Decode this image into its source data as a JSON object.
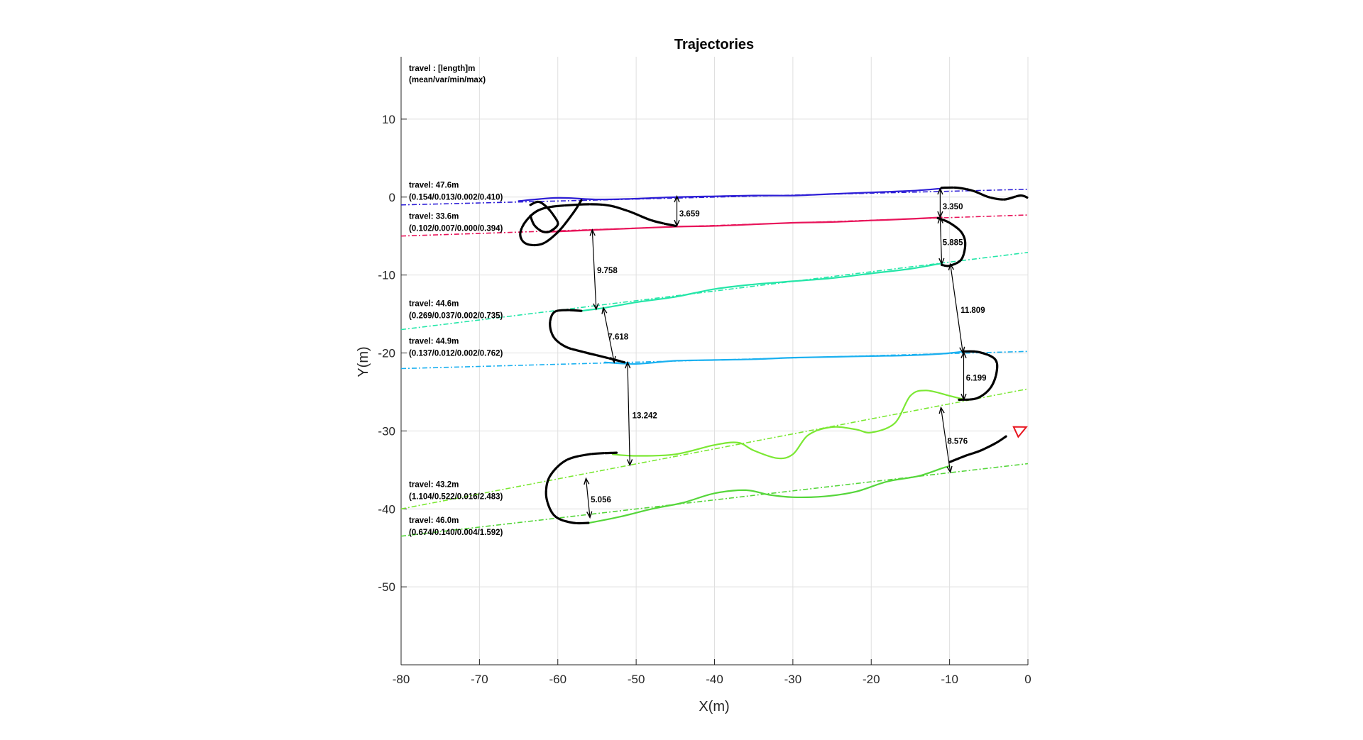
{
  "chart_data": {
    "type": "line",
    "title": "Trajectories",
    "xlabel": "X(m)",
    "ylabel": "Y(m)",
    "xlim": [
      -80,
      0
    ],
    "ylim": [
      -60,
      18
    ],
    "xticks": [
      -80,
      -70,
      -60,
      -50,
      -40,
      -30,
      -20,
      -10,
      0
    ],
    "yticks": [
      -50,
      -40,
      -30,
      -20,
      -10,
      0,
      10
    ],
    "grid": true,
    "legend_note": [
      "travel : [length]m",
      "(mean/var/min/max)"
    ],
    "series": [
      {
        "color": "#2e1fd6",
        "label_lines": [
          "travel: 47.6m",
          "(0.154/0.013/0.002/0.410)"
        ],
        "label_at": [
          -79,
          -0.8
        ],
        "reference": [
          [
            -80,
            -1.0
          ],
          [
            0,
            1.0
          ]
        ],
        "x": [
          -65,
          -60,
          -55,
          -50,
          -45,
          -40,
          -35,
          -30,
          -25,
          -20,
          -15,
          -11
        ],
        "y": [
          -0.5,
          -0.1,
          -0.3,
          -0.2,
          0.0,
          0.1,
          0.2,
          0.2,
          0.4,
          0.6,
          0.8,
          1.1
        ]
      },
      {
        "color": "#e8145a",
        "label_lines": [
          "travel: 33.6m",
          "(0.102/0.007/0.000/0.394)"
        ],
        "label_at": [
          -79,
          -4.8
        ],
        "reference": [
          [
            -80,
            -5.0
          ],
          [
            0,
            -2.3
          ]
        ],
        "x": [
          -62,
          -55,
          -50,
          -45,
          -40,
          -35,
          -30,
          -25,
          -20,
          -15,
          -11
        ],
        "y": [
          -4.5,
          -4.2,
          -4.0,
          -3.8,
          -3.7,
          -3.5,
          -3.3,
          -3.2,
          -3.0,
          -2.8,
          -2.6
        ]
      },
      {
        "color": "#24e6a8",
        "label_lines": [
          "travel: 44.6m",
          "(0.269/0.037/0.002/0.735)"
        ],
        "label_at": [
          -79,
          -16.0
        ],
        "reference": [
          [
            -80,
            -17.0
          ],
          [
            0,
            -7.1
          ]
        ],
        "x": [
          -57,
          -54,
          -50,
          -45,
          -40,
          -35,
          -30,
          -25,
          -20,
          -15,
          -11
        ],
        "y": [
          -14.6,
          -14.2,
          -13.5,
          -12.8,
          -11.8,
          -11.2,
          -10.8,
          -10.4,
          -9.8,
          -9.2,
          -8.5
        ]
      },
      {
        "color": "#1ab0f0",
        "label_lines": [
          "travel: 44.9m",
          "(0.137/0.012/0.002/0.762)"
        ],
        "label_at": [
          -79,
          -20.8
        ],
        "reference": [
          [
            -80,
            -22.0
          ],
          [
            0,
            -19.8
          ]
        ],
        "x": [
          -54,
          -50,
          -45,
          -40,
          -35,
          -30,
          -25,
          -20,
          -15,
          -11,
          -8
        ],
        "y": [
          -21.2,
          -21.4,
          -21.0,
          -20.9,
          -20.8,
          -20.6,
          -20.5,
          -20.4,
          -20.3,
          -20.1,
          -19.8
        ]
      },
      {
        "color": "#7be833",
        "label_lines": [
          "travel: 43.2m",
          "(1.104/0.522/0.016/2.483)"
        ],
        "label_at": [
          -79,
          -39.2
        ],
        "reference": [
          [
            -80,
            -40.0
          ],
          [
            0,
            -24.6
          ]
        ],
        "x": [
          -53,
          -50,
          -45,
          -40,
          -37,
          -35,
          -32,
          -30,
          -28,
          -25,
          -22,
          -20,
          -17,
          -15,
          -13,
          -10,
          -8
        ],
        "y": [
          -33.0,
          -33.2,
          -33.0,
          -31.8,
          -31.5,
          -32.5,
          -33.5,
          -33.0,
          -30.5,
          -29.5,
          -29.8,
          -30.2,
          -29.0,
          -25.5,
          -24.8,
          -25.5,
          -26.0
        ]
      },
      {
        "color": "#55d63a",
        "label_lines": [
          "travel: 46.0m",
          "(0.674/0.140/0.004/1.592)"
        ],
        "label_at": [
          -79,
          -43.8
        ],
        "reference": [
          [
            -80,
            -43.5
          ],
          [
            0,
            -34.2
          ]
        ],
        "x": [
          -56,
          -52,
          -48,
          -44,
          -40,
          -36,
          -33,
          -30,
          -26,
          -22,
          -18,
          -14,
          -11,
          -10
        ],
        "y": [
          -41.8,
          -41.0,
          -40.0,
          -39.2,
          -38.0,
          -37.6,
          -38.2,
          -38.5,
          -38.4,
          -37.8,
          -36.5,
          -35.8,
          -34.8,
          -34.5
        ]
      }
    ],
    "connections": {
      "color": "#000000",
      "segments": [
        {
          "x": [
            -63.5,
            -62.5,
            -61.5,
            -60.5,
            -60,
            -61,
            -62,
            -63,
            -63.5
          ],
          "y": [
            -1.0,
            -0.6,
            -1.2,
            -2.4,
            -3.5,
            -4.4,
            -4.4,
            -3.6,
            -2.4
          ]
        },
        {
          "x": [
            -45,
            -48,
            -51,
            -54,
            -58,
            -62,
            -64,
            -64.8,
            -64,
            -62,
            -60,
            -58,
            -57
          ],
          "y": [
            -3.7,
            -3.0,
            -1.8,
            -1.0,
            -1.0,
            -1.5,
            -3.0,
            -4.8,
            -6.0,
            -6.0,
            -4.5,
            -2.0,
            -0.4
          ]
        },
        {
          "x": [
            -11.5,
            -10,
            -8.5,
            -8,
            -8.5,
            -10,
            -11
          ],
          "y": [
            -2.7,
            -3.3,
            -4.5,
            -6.0,
            -8.0,
            -8.8,
            -8.7
          ]
        },
        {
          "x": [
            -57,
            -59,
            -60.5,
            -61,
            -60.5,
            -59,
            -57,
            -55,
            -53,
            -51.5
          ],
          "y": [
            -14.6,
            -14.5,
            -14.8,
            -16.3,
            -18.0,
            -19.2,
            -19.8,
            -20.3,
            -20.8,
            -21.2
          ]
        },
        {
          "x": [
            -8.2,
            -6.2,
            -4.2,
            -4.0,
            -4.8,
            -6.5,
            -8.8
          ],
          "y": [
            -19.8,
            -19.9,
            -20.8,
            -22.5,
            -24.5,
            -25.8,
            -26.0
          ]
        },
        {
          "x": [
            -52.5,
            -56,
            -59,
            -61,
            -61.5,
            -61,
            -60,
            -58,
            -56
          ],
          "y": [
            -32.8,
            -33.0,
            -33.8,
            -35.8,
            -38.0,
            -40.0,
            -41.2,
            -41.8,
            -41.8
          ]
        },
        {
          "x": [
            -10,
            -8,
            -6,
            -4,
            -2.8
          ],
          "y": [
            -34.0,
            -33.2,
            -32.5,
            -31.5,
            -30.7
          ]
        },
        {
          "x": [
            -11,
            -9,
            -7,
            -5,
            -3,
            -1,
            0
          ],
          "y": [
            1.2,
            1.2,
            0.8,
            0.0,
            -0.3,
            0.2,
            -0.1
          ]
        }
      ],
      "arrow_end": {
        "from": [
          -3.4,
          -31.0
        ],
        "to": [
          -0.2,
          -29.5
        ],
        "color": "#e8141e"
      }
    },
    "distances": [
      {
        "label": "3.659",
        "x1": -44.8,
        "y1": 0.1,
        "x2": -44.8,
        "y2": -3.7,
        "label_at": [
          -44.5,
          -2.1
        ]
      },
      {
        "label": "3.350",
        "x1": -11.2,
        "y1": 1.1,
        "x2": -11.2,
        "y2": -2.6,
        "label_at": [
          -10.9,
          -1.2
        ]
      },
      {
        "label": "9.758",
        "x1": -55.6,
        "y1": -4.2,
        "x2": -55.1,
        "y2": -14.4,
        "label_at": [
          -55.0,
          -9.4
        ]
      },
      {
        "label": "5.885",
        "x1": -11.2,
        "y1": -2.6,
        "x2": -11.0,
        "y2": -8.6,
        "label_at": [
          -10.9,
          -5.8
        ]
      },
      {
        "label": "7.618",
        "x1": -54.2,
        "y1": -14.2,
        "x2": -52.8,
        "y2": -21.2,
        "label_at": [
          -53.6,
          -17.9
        ]
      },
      {
        "label": "11.809",
        "x1": -9.9,
        "y1": -8.6,
        "x2": -8.3,
        "y2": -20.0,
        "label_at": [
          -8.6,
          -14.5
        ]
      },
      {
        "label": "6.199",
        "x1": -8.2,
        "y1": -19.9,
        "x2": -8.2,
        "y2": -26.0,
        "label_at": [
          -7.9,
          -23.2
        ]
      },
      {
        "label": "13.242",
        "x1": -51.1,
        "y1": -21.2,
        "x2": -50.8,
        "y2": -34.4,
        "label_at": [
          -50.5,
          -28.0
        ]
      },
      {
        "label": "8.576",
        "x1": -11.1,
        "y1": -27.0,
        "x2": -9.9,
        "y2": -35.3,
        "label_at": [
          -10.3,
          -31.3
        ]
      },
      {
        "label": "5.056",
        "x1": -56.4,
        "y1": -36.1,
        "x2": -55.9,
        "y2": -41.1,
        "label_at": [
          -55.8,
          -38.8
        ]
      }
    ]
  }
}
